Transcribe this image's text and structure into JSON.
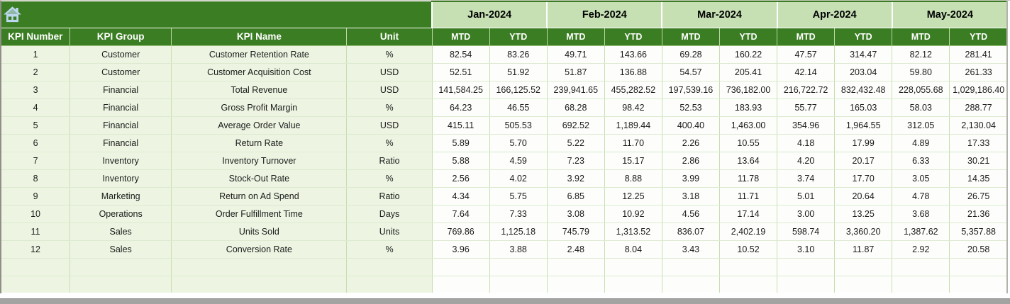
{
  "colors": {
    "dark_green": "#3a7d22",
    "light_green": "#c6e0b4",
    "pale_green": "#edf5e2",
    "grid_green": "#c6deae",
    "home_icon_blue": "#bdd7ee",
    "scrollbar_gray": "#a3a3a1"
  },
  "icons": {
    "home": "home-icon"
  },
  "table": {
    "column_headers": [
      "KPI Number",
      "KPI Group",
      "KPI Name",
      "Unit"
    ],
    "months": [
      "Jan-2024",
      "Feb-2024",
      "Mar-2024",
      "Apr-2024",
      "May-2024"
    ],
    "period_subheaders": [
      "MTD",
      "YTD"
    ],
    "rows": [
      {
        "kpi_number": "1",
        "kpi_group": "Customer",
        "kpi_name": "Customer Retention Rate",
        "unit": "%",
        "values": [
          "82.54",
          "83.26",
          "49.71",
          "143.66",
          "69.28",
          "160.22",
          "47.57",
          "314.47",
          "82.12",
          "281.41"
        ]
      },
      {
        "kpi_number": "2",
        "kpi_group": "Customer",
        "kpi_name": "Customer Acquisition Cost",
        "unit": "USD",
        "values": [
          "52.51",
          "51.92",
          "51.87",
          "136.88",
          "54.57",
          "205.41",
          "42.14",
          "203.04",
          "59.80",
          "261.33"
        ]
      },
      {
        "kpi_number": "3",
        "kpi_group": "Financial",
        "kpi_name": "Total Revenue",
        "unit": "USD",
        "values": [
          "141,584.25",
          "166,125.52",
          "239,941.65",
          "455,282.52",
          "197,539.16",
          "736,182.00",
          "216,722.72",
          "832,432.48",
          "228,055.68",
          "1,029,186.40"
        ]
      },
      {
        "kpi_number": "4",
        "kpi_group": "Financial",
        "kpi_name": "Gross Profit Margin",
        "unit": "%",
        "values": [
          "64.23",
          "46.55",
          "68.28",
          "98.42",
          "52.53",
          "183.93",
          "55.77",
          "165.03",
          "58.03",
          "288.77"
        ]
      },
      {
        "kpi_number": "5",
        "kpi_group": "Financial",
        "kpi_name": "Average Order Value",
        "unit": "USD",
        "values": [
          "415.11",
          "505.53",
          "692.52",
          "1,189.44",
          "400.40",
          "1,463.00",
          "354.96",
          "1,964.55",
          "312.05",
          "2,130.04"
        ]
      },
      {
        "kpi_number": "6",
        "kpi_group": "Financial",
        "kpi_name": "Return Rate",
        "unit": "%",
        "values": [
          "5.89",
          "5.70",
          "5.22",
          "11.70",
          "2.26",
          "10.55",
          "4.18",
          "17.99",
          "4.89",
          "17.33"
        ]
      },
      {
        "kpi_number": "7",
        "kpi_group": "Inventory",
        "kpi_name": "Inventory Turnover",
        "unit": "Ratio",
        "values": [
          "5.88",
          "4.59",
          "7.23",
          "15.17",
          "2.86",
          "13.64",
          "4.20",
          "20.17",
          "6.33",
          "30.21"
        ]
      },
      {
        "kpi_number": "8",
        "kpi_group": "Inventory",
        "kpi_name": "Stock-Out Rate",
        "unit": "%",
        "values": [
          "2.56",
          "4.02",
          "3.92",
          "8.88",
          "3.99",
          "11.78",
          "3.74",
          "17.70",
          "3.05",
          "14.35"
        ]
      },
      {
        "kpi_number": "9",
        "kpi_group": "Marketing",
        "kpi_name": "Return on Ad Spend",
        "unit": "Ratio",
        "values": [
          "4.34",
          "5.75",
          "6.85",
          "12.25",
          "3.18",
          "11.71",
          "5.01",
          "20.64",
          "4.78",
          "26.75"
        ]
      },
      {
        "kpi_number": "10",
        "kpi_group": "Operations",
        "kpi_name": "Order Fulfillment Time",
        "unit": "Days",
        "values": [
          "7.64",
          "7.33",
          "3.08",
          "10.92",
          "4.56",
          "17.14",
          "3.00",
          "13.25",
          "3.68",
          "21.36"
        ]
      },
      {
        "kpi_number": "11",
        "kpi_group": "Sales",
        "kpi_name": "Units Sold",
        "unit": "Units",
        "values": [
          "769.86",
          "1,125.18",
          "745.79",
          "1,313.52",
          "836.07",
          "2,402.19",
          "598.74",
          "3,360.20",
          "1,387.62",
          "5,357.88"
        ]
      },
      {
        "kpi_number": "12",
        "kpi_group": "Sales",
        "kpi_name": "Conversion Rate",
        "unit": "%",
        "values": [
          "3.96",
          "3.88",
          "2.48",
          "8.04",
          "3.43",
          "10.52",
          "3.10",
          "11.87",
          "2.92",
          "20.58"
        ]
      }
    ],
    "empty_row_count": 2
  }
}
